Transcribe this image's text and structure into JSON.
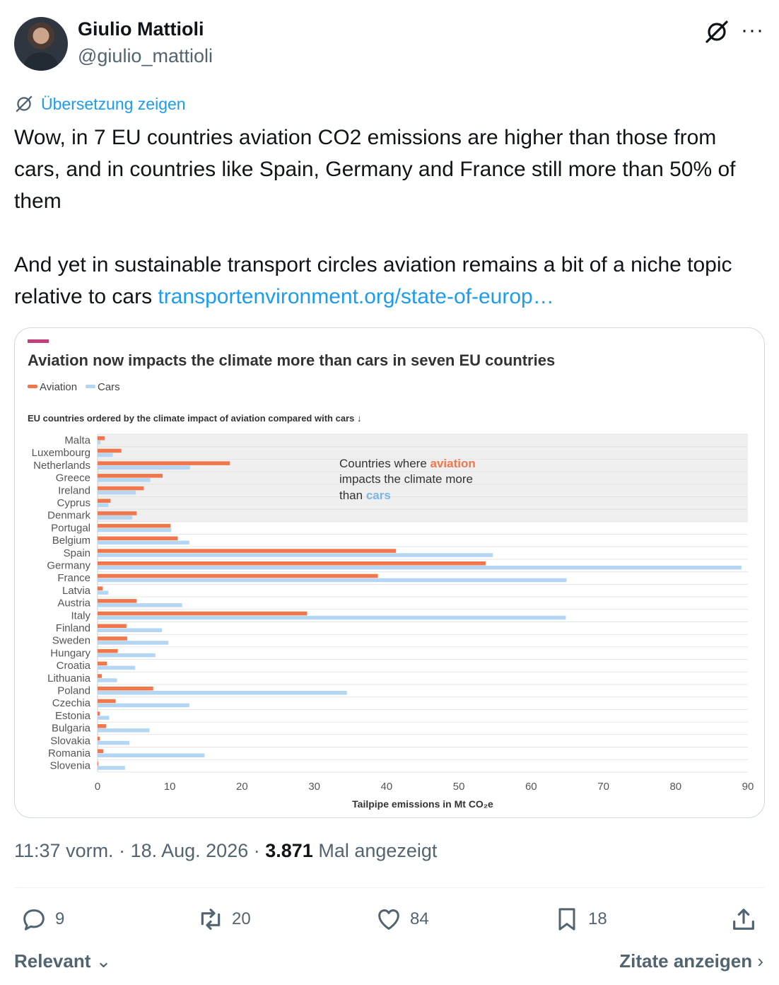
{
  "author": {
    "name": "Giulio Mattioli",
    "handle": "@giulio_mattioli"
  },
  "translate_label": "Übersetzung zeigen",
  "tweet": {
    "text": "Wow, in 7 EU countries aviation CO2 emissions are higher than those from cars, and in countries like Spain, Germany and France still more than 50% of them\n\nAnd yet in sustainable transport circles aviation remains a bit of a niche topic relative to cars ",
    "link": "transportenvironment.org/state-of-europ…"
  },
  "meta": {
    "time": "11:37 vorm.",
    "date": "18. Aug. 2026",
    "views": "3.871",
    "views_label": "Mal angezeigt"
  },
  "actions": {
    "replies": "9",
    "reposts": "20",
    "likes": "84",
    "bookmarks": "18"
  },
  "footer": {
    "left": "Relevant",
    "right": "Zitate anzeigen"
  },
  "colors": {
    "aviation": "#f0774b",
    "cars": "#b5d6f2",
    "accent": "#1d9bf0",
    "brand": "#c2407a"
  },
  "chart_data": {
    "type": "bar",
    "orientation": "horizontal",
    "title": "Aviation now impacts the climate more than cars in seven EU countries",
    "subtitle": "EU countries ordered by the climate impact of aviation compared with cars ↓",
    "xlabel": "Tailpipe emissions in Mt CO₂e",
    "xlim": [
      0,
      90
    ],
    "xticks": [
      0,
      10,
      20,
      30,
      40,
      50,
      60,
      70,
      80,
      90
    ],
    "legend_position": "top-left",
    "grid": true,
    "categories": [
      "Malta",
      "Luxembourg",
      "Netherlands",
      "Greece",
      "Ireland",
      "Cyprus",
      "Denmark",
      "Portugal",
      "Belgium",
      "Spain",
      "Germany",
      "France",
      "Latvia",
      "Austria",
      "Italy",
      "Finland",
      "Sweden",
      "Hungary",
      "Croatia",
      "Lithuania",
      "Poland",
      "Czechia",
      "Estonia",
      "Bulgaria",
      "Slovakia",
      "Romania",
      "Slovenia"
    ],
    "series": [
      {
        "name": "Aviation",
        "values": [
          1.0,
          3.3,
          18.3,
          9.0,
          6.4,
          1.8,
          5.4,
          10.1,
          11.1,
          41.3,
          53.7,
          38.8,
          0.7,
          5.4,
          29.0,
          4.0,
          4.1,
          2.8,
          1.3,
          0.6,
          7.7,
          2.5,
          0.3,
          1.2,
          0.3,
          0.8,
          0.1
        ]
      },
      {
        "name": "Cars",
        "values": [
          0.4,
          2.1,
          12.8,
          7.3,
          5.3,
          1.5,
          4.8,
          10.2,
          12.7,
          54.7,
          89.1,
          64.9,
          1.5,
          11.7,
          64.8,
          8.9,
          9.8,
          8.0,
          5.2,
          2.7,
          34.5,
          12.7,
          1.6,
          7.2,
          4.4,
          14.8,
          3.8
        ]
      }
    ],
    "highlight": {
      "rows": 7,
      "note_parts": [
        "Countries where ",
        "aviation",
        " impacts the climate more",
        "than ",
        "cars"
      ]
    }
  }
}
